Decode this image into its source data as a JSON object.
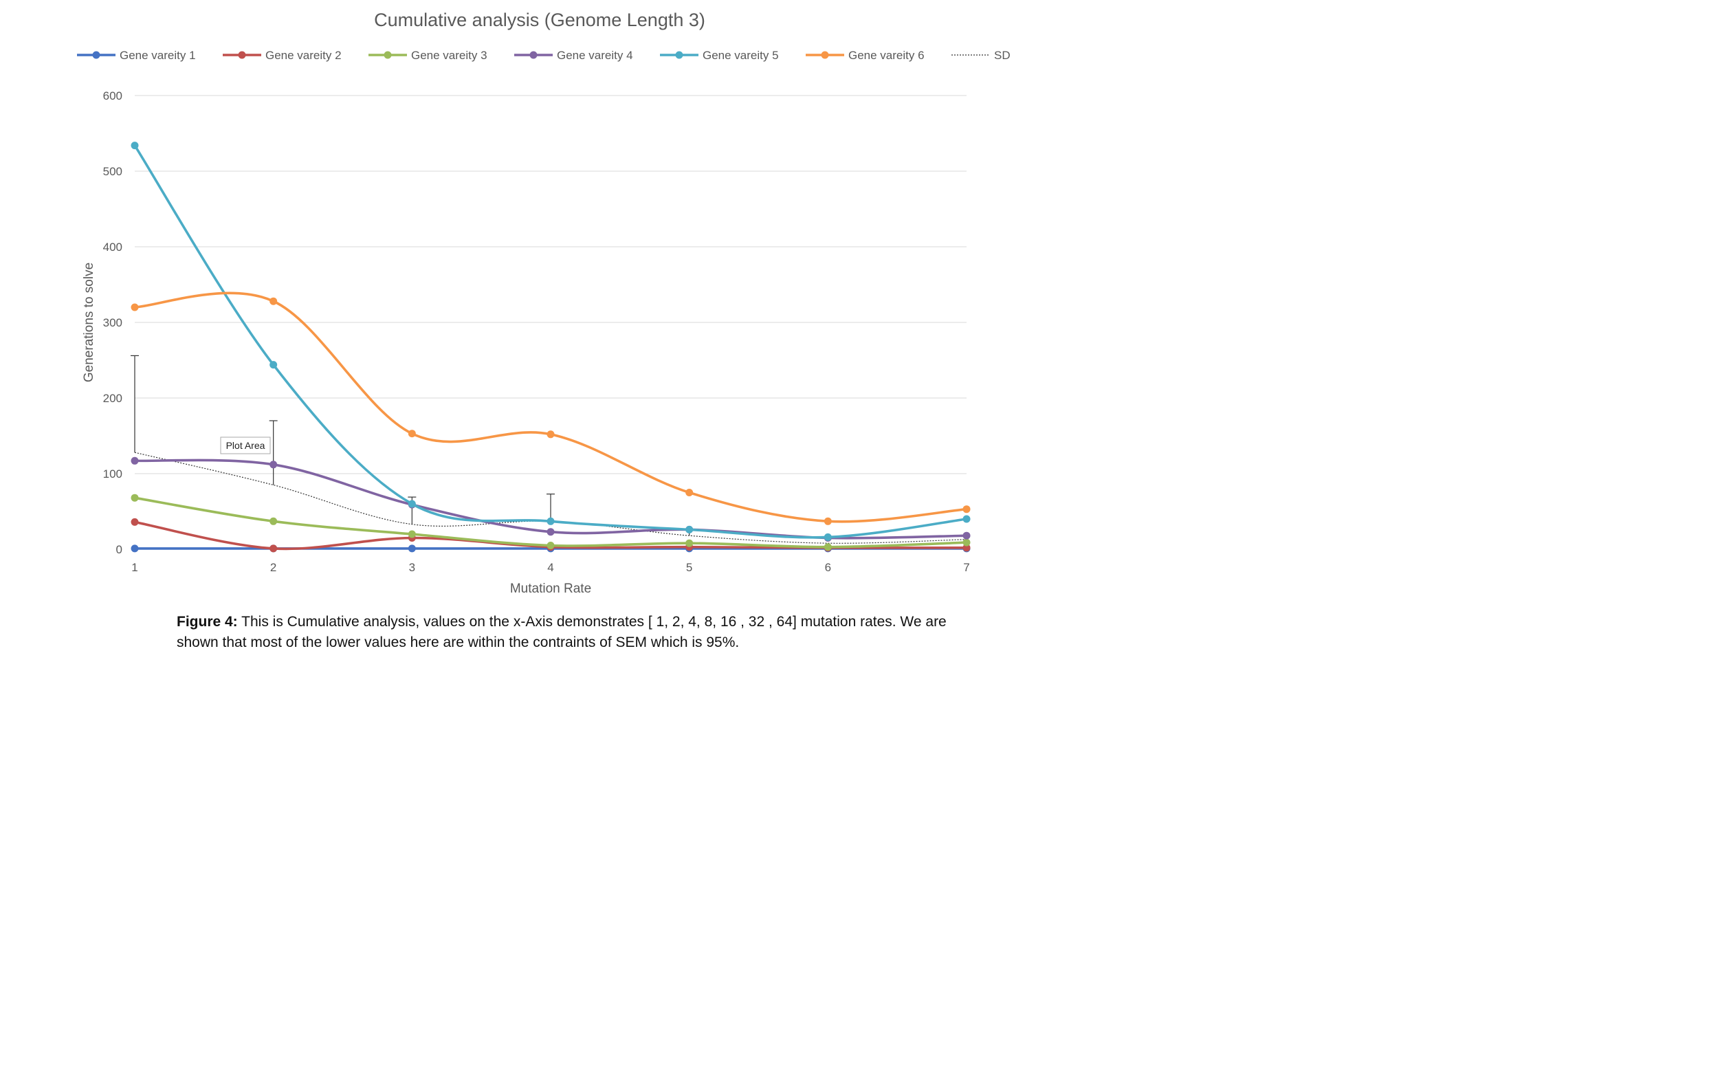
{
  "chart_data": {
    "type": "line",
    "title": "Cumulative analysis (Genome Length 3)",
    "xlabel": "Mutation Rate",
    "ylabel": "Generations to solve",
    "x": [
      1,
      2,
      3,
      4,
      5,
      6,
      7
    ],
    "x_ticks": [
      "1",
      "2",
      "3",
      "4",
      "5",
      "6",
      "7"
    ],
    "xlim": [
      1,
      7
    ],
    "ylim": [
      0,
      600
    ],
    "y_ticks": [
      0,
      100,
      200,
      300,
      400,
      500,
      600
    ],
    "y_tick_labels": [
      "0",
      "100",
      "200",
      "300",
      "400",
      "500",
      "600"
    ],
    "grid": "horizontal",
    "legend_position": "top",
    "smooth": true,
    "series": [
      {
        "name": "Gene vareity 1",
        "color": "#4472C4",
        "values": [
          1,
          1,
          1,
          1,
          1,
          1,
          1
        ]
      },
      {
        "name": "Gene vareity 2",
        "color": "#C0504D",
        "values": [
          36,
          1,
          15,
          3,
          3,
          2,
          2
        ]
      },
      {
        "name": "Gene vareity 3",
        "color": "#9BBB59",
        "values": [
          68,
          37,
          20,
          5,
          8,
          3,
          9
        ]
      },
      {
        "name": "Gene vareity 4",
        "color": "#8064A2",
        "values": [
          117,
          112,
          59,
          23,
          26,
          15,
          18
        ]
      },
      {
        "name": "Gene vareity 5",
        "color": "#4BACC6",
        "values": [
          534,
          244,
          60,
          37,
          26,
          16,
          40
        ]
      },
      {
        "name": "Gene vareity 6",
        "color": "#F79646",
        "values": [
          320,
          328,
          153,
          152,
          75,
          37,
          53
        ]
      }
    ],
    "sd": {
      "name": "SD",
      "color": "#333333",
      "values": [
        128,
        85,
        33,
        37,
        18,
        8,
        13
      ],
      "error_plus": [
        128,
        85,
        36,
        36,
        8,
        0,
        0
      ]
    }
  },
  "tooltip": "Plot Area",
  "caption": {
    "label": "Figure 4:",
    "text": "  This is Cumulative analysis, values on the x-Axis demonstrates [ 1, 2, 4, 8, 16 , 32 , 64] mutation rates.  We are shown that most of the lower values here are within the contraints of SEM which is 95%."
  }
}
